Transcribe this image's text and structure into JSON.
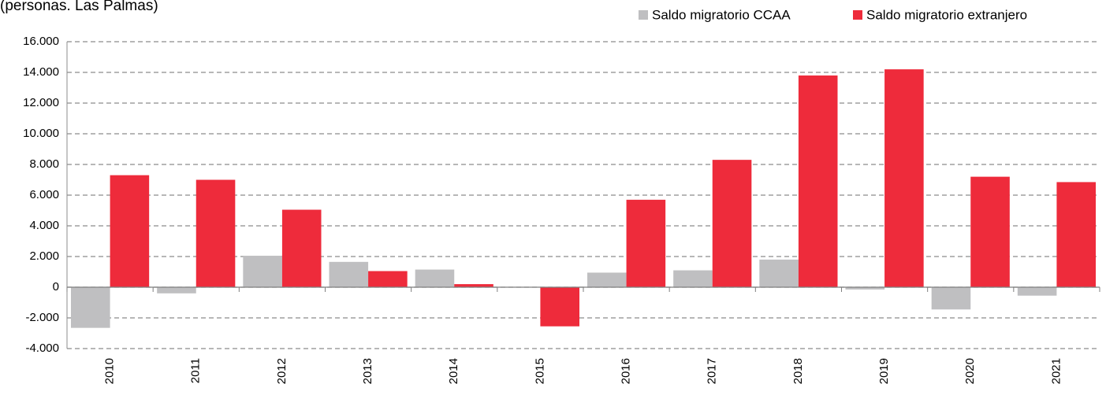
{
  "chart_data": {
    "type": "bar",
    "subtitle": "(personas. Las Palmas)",
    "categories": [
      "2010",
      "2011",
      "2012",
      "2013",
      "2014",
      "2015",
      "2016",
      "2017",
      "2018",
      "2019",
      "2020",
      "2021"
    ],
    "series": [
      {
        "name": "Saldo migratorio CCAA",
        "color": "#bfbfc1",
        "values": [
          -2650,
          -400,
          2050,
          1650,
          1150,
          0,
          950,
          1100,
          1800,
          -150,
          -1450,
          -550
        ]
      },
      {
        "name": "Saldo migratorio extranjero",
        "color": "#ee2b3b",
        "values": [
          7300,
          7000,
          5050,
          1050,
          200,
          -2550,
          5700,
          8300,
          13800,
          14200,
          7200,
          6850
        ]
      }
    ],
    "ylim": [
      -4000,
      16000
    ],
    "yticks": [
      {
        "value": -4000,
        "label": "-4.000"
      },
      {
        "value": -2000,
        "label": "-2.000"
      },
      0,
      {
        "value": 2000,
        "label": "2.000"
      },
      {
        "value": 4000,
        "label": "4.000"
      },
      {
        "value": 6000,
        "label": "6.000"
      },
      {
        "value": 8000,
        "label": "8.000"
      },
      {
        "value": 10000,
        "label": "10.000"
      },
      {
        "value": 12000,
        "label": "12.000"
      },
      {
        "value": 14000,
        "label": "14.000"
      },
      {
        "value": 16000,
        "label": "16.000"
      }
    ],
    "grid": true,
    "legend": "top-right"
  }
}
